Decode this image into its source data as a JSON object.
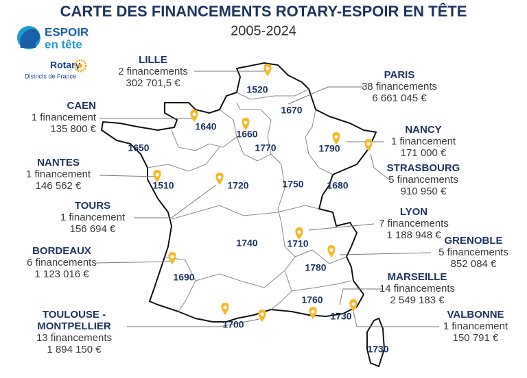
{
  "header": {
    "title": "CARTE DES FINANCEMENTS ROTARY-ESPOIR EN TÊTE",
    "subtitle": "2005-2024"
  },
  "logo": {
    "brand_line1": "ESPOIR",
    "brand_line2": "en tête",
    "rotary": "Rotary",
    "rotary_sub": "Districts de France"
  },
  "cities": [
    {
      "name": [
        "LILLE"
      ],
      "count": "2 financements",
      "amount": "302 701,5 €"
    },
    {
      "name": [
        "PARIS"
      ],
      "count": "38 financements",
      "amount": "6 661 045 €"
    },
    {
      "name": [
        "CAEN"
      ],
      "count": "1 financement",
      "amount": "135 800 €"
    },
    {
      "name": [
        "NANCY"
      ],
      "count": "1 financement",
      "amount": "171 000 €"
    },
    {
      "name": [
        "STRASBOURG"
      ],
      "count": "5 financements",
      "amount": "910 950 €"
    },
    {
      "name": [
        "NANTES"
      ],
      "count": "1 financement",
      "amount": "146 562 €"
    },
    {
      "name": [
        "TOURS"
      ],
      "count": "1 financement",
      "amount": "156 694 €"
    },
    {
      "name": [
        "LYON"
      ],
      "count": "7 financements",
      "amount": "1 188 948 €"
    },
    {
      "name": [
        "GRENOBLE"
      ],
      "count": "5 financements",
      "amount": "852 084 €"
    },
    {
      "name": [
        "BORDEAUX"
      ],
      "count": "6 financements",
      "amount": "1 123 016 €"
    },
    {
      "name": [
        "MARSEILLE"
      ],
      "count": "14 financements",
      "amount": "2 549 183 €"
    },
    {
      "name": [
        "TOULOUSE -",
        "MONTPELLIER"
      ],
      "count": "13 financements",
      "amount": "1 894 150 €"
    },
    {
      "name": [
        "VALBONNE"
      ],
      "count": "1 financement",
      "amount": "150 791 €"
    }
  ],
  "districts": [
    "1520",
    "1670",
    "1640",
    "1660",
    "1770",
    "1650",
    "1790",
    "1510",
    "1720",
    "1750",
    "1680",
    "1740",
    "1710",
    "1780",
    "1690",
    "1760",
    "1730",
    "1700",
    "1730"
  ]
}
